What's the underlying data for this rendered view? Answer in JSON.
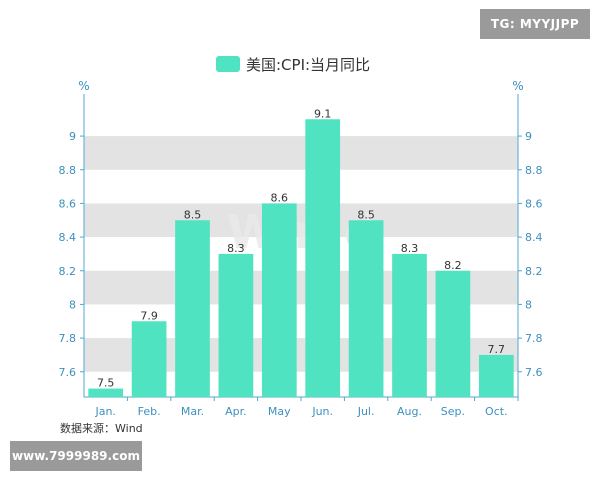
{
  "watermarks": {
    "top_right": "TG: MYYJJPP",
    "bottom_left": "www.7999989.com",
    "center": "Win.d"
  },
  "source": "数据来源：Wind",
  "colors": {
    "bar": "#50e3c2",
    "axis": "#4fa8d0",
    "tick_text": "#3d8fbf",
    "band": "#e3e3e3"
  },
  "chart_data": {
    "type": "bar",
    "title": "",
    "categories": [
      "Jan.",
      "Feb.",
      "Mar.",
      "Apr.",
      "May",
      "Jun.",
      "Jul.",
      "Aug.",
      "Sep.",
      "Oct."
    ],
    "series": [
      {
        "name": "美国:CPI:当月同比",
        "values": [
          7.5,
          7.9,
          8.5,
          8.3,
          8.6,
          9.1,
          8.5,
          8.3,
          8.2,
          7.7
        ]
      }
    ],
    "data_labels": [
      "7.5",
      "7.9",
      "8.5",
      "8.3",
      "8.6",
      "9.1",
      "8.5",
      "8.3",
      "8.2",
      "7.7"
    ],
    "y_left_label": "%",
    "y_right_label": "%",
    "y_ticks": [
      "7.6",
      "7.8",
      "8",
      "8.2",
      "8.4",
      "8.6",
      "8.8",
      "9"
    ],
    "y_tick_values": [
      7.6,
      7.8,
      8.0,
      8.2,
      8.4,
      8.6,
      8.8,
      9.0
    ],
    "ylim": [
      7.45,
      9.25
    ],
    "legend": "top-center",
    "grid": "alternating horizontal bands"
  }
}
